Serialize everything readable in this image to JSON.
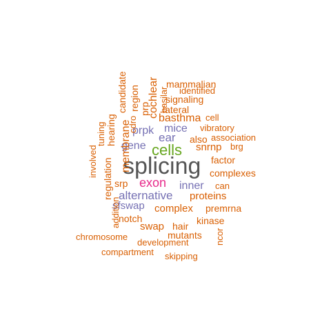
{
  "palette": {
    "orange": "#d95f02",
    "purple": "#7570b3",
    "green": "#66a61e",
    "gray": "#555555",
    "magenta": "#e7298a"
  },
  "words": [
    {
      "text": "splicing",
      "color": "gray"
    },
    {
      "text": "cells",
      "color": "green"
    },
    {
      "text": "exon",
      "color": "magenta"
    },
    {
      "text": "alternative",
      "color": "purple"
    },
    {
      "text": "inner",
      "color": "purple"
    },
    {
      "text": "mice",
      "color": "purple"
    },
    {
      "text": "ear",
      "color": "purple"
    },
    {
      "text": "gene",
      "color": "purple"
    },
    {
      "text": "prpk",
      "color": "purple"
    },
    {
      "text": "sfswap",
      "color": "purple"
    },
    {
      "text": "mammalian",
      "color": "orange"
    },
    {
      "text": "identified",
      "color": "orange"
    },
    {
      "text": "signaling",
      "color": "orange"
    },
    {
      "text": "lateral",
      "color": "orange"
    },
    {
      "text": "basthma",
      "color": "orange"
    },
    {
      "text": "cell",
      "color": "orange"
    },
    {
      "text": "vibratory",
      "color": "orange"
    },
    {
      "text": "also",
      "color": "orange"
    },
    {
      "text": "association",
      "color": "orange"
    },
    {
      "text": "snrnp",
      "color": "orange"
    },
    {
      "text": "brg",
      "color": "orange"
    },
    {
      "text": "factor",
      "color": "orange"
    },
    {
      "text": "complexes",
      "color": "orange"
    },
    {
      "text": "can",
      "color": "orange"
    },
    {
      "text": "proteins",
      "color": "orange"
    },
    {
      "text": "complex",
      "color": "orange"
    },
    {
      "text": "premrna",
      "color": "orange"
    },
    {
      "text": "kinase",
      "color": "orange"
    },
    {
      "text": "hair",
      "color": "orange"
    },
    {
      "text": "swap",
      "color": "orange"
    },
    {
      "text": "notch",
      "color": "orange"
    },
    {
      "text": "mutants",
      "color": "orange"
    },
    {
      "text": "development",
      "color": "orange"
    },
    {
      "text": "chromosome",
      "color": "orange"
    },
    {
      "text": "compartment",
      "color": "orange"
    },
    {
      "text": "skipping",
      "color": "orange"
    },
    {
      "text": "srp",
      "color": "orange"
    },
    {
      "text": "ncor",
      "color": "orange"
    },
    {
      "text": "candidate",
      "color": "orange"
    },
    {
      "text": "region",
      "color": "orange"
    },
    {
      "text": "cdro",
      "color": "orange"
    },
    {
      "text": "cochlear",
      "color": "orange"
    },
    {
      "text": "basilar",
      "color": "orange"
    },
    {
      "text": "prp",
      "color": "orange"
    },
    {
      "text": "membrane",
      "color": "orange"
    },
    {
      "text": "hearing",
      "color": "orange"
    },
    {
      "text": "tuning",
      "color": "orange"
    },
    {
      "text": "involved",
      "color": "orange"
    },
    {
      "text": "regulation",
      "color": "orange"
    },
    {
      "text": "addition",
      "color": "orange"
    }
  ]
}
